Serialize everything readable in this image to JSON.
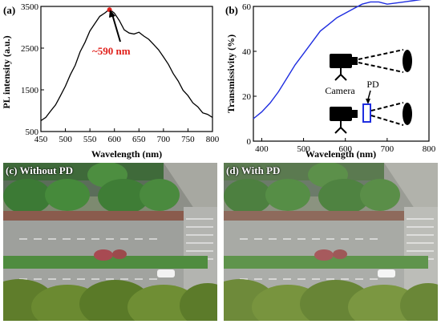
{
  "panel_a": {
    "label": "(a)",
    "annotation": "~590 nm",
    "colors": {
      "line": "#000000",
      "peak_marker": "#e0201b",
      "annotation": "#e0201b"
    }
  },
  "panel_b": {
    "label": "(b)",
    "camera_label": "Camera",
    "pd_label": "PD",
    "colors": {
      "line": "#1f2ee0",
      "pd_box": "#1f2ee0"
    }
  },
  "panel_c": {
    "label": "(c) Without PD"
  },
  "panel_d": {
    "label": "(d) With PD"
  },
  "chart_data": [
    {
      "type": "line",
      "title": "",
      "xlabel": "Wavelength (nm)",
      "ylabel": "PL intensity (a.u.)",
      "xlim": [
        450,
        800
      ],
      "ylim": [
        500,
        3500
      ],
      "xticks": [
        450,
        500,
        550,
        600,
        650,
        700,
        750,
        800
      ],
      "yticks": [
        500,
        1500,
        2500,
        3500
      ],
      "grid": false,
      "series": [
        {
          "x": [
            450,
            460,
            470,
            480,
            490,
            500,
            510,
            520,
            530,
            540,
            550,
            560,
            570,
            580,
            590,
            600,
            610,
            620,
            630,
            640,
            650,
            660,
            670,
            680,
            690,
            700,
            710,
            720,
            730,
            740,
            750,
            760,
            770,
            780,
            790,
            800
          ],
          "values": [
            750,
            850,
            980,
            1150,
            1350,
            1600,
            1850,
            2100,
            2400,
            2650,
            2900,
            3100,
            3250,
            3350,
            3420,
            3350,
            3150,
            2950,
            2850,
            2850,
            2870,
            2800,
            2700,
            2600,
            2450,
            2300,
            2100,
            1900,
            1700,
            1500,
            1350,
            1200,
            1080,
            960,
            900,
            850
          ]
        }
      ]
    },
    {
      "type": "line",
      "title": "",
      "xlabel": "Wavelength (nm)",
      "ylabel": "Transmissivity (%)",
      "xlim": [
        380,
        800
      ],
      "ylim": [
        0,
        60
      ],
      "xticks": [
        400,
        500,
        600,
        700,
        800
      ],
      "yticks": [
        0,
        20,
        40,
        60
      ],
      "grid": false,
      "series": [
        {
          "x": [
            380,
            400,
            420,
            440,
            460,
            480,
            500,
            520,
            540,
            560,
            580,
            600,
            620,
            640,
            660,
            680,
            700,
            720,
            740,
            760,
            780,
            800
          ],
          "values": [
            10,
            13,
            17,
            22,
            28,
            34,
            39,
            44,
            49,
            52,
            55,
            57,
            59,
            61,
            62,
            62,
            61,
            61.5,
            62,
            62.5,
            63,
            64
          ]
        }
      ]
    }
  ]
}
